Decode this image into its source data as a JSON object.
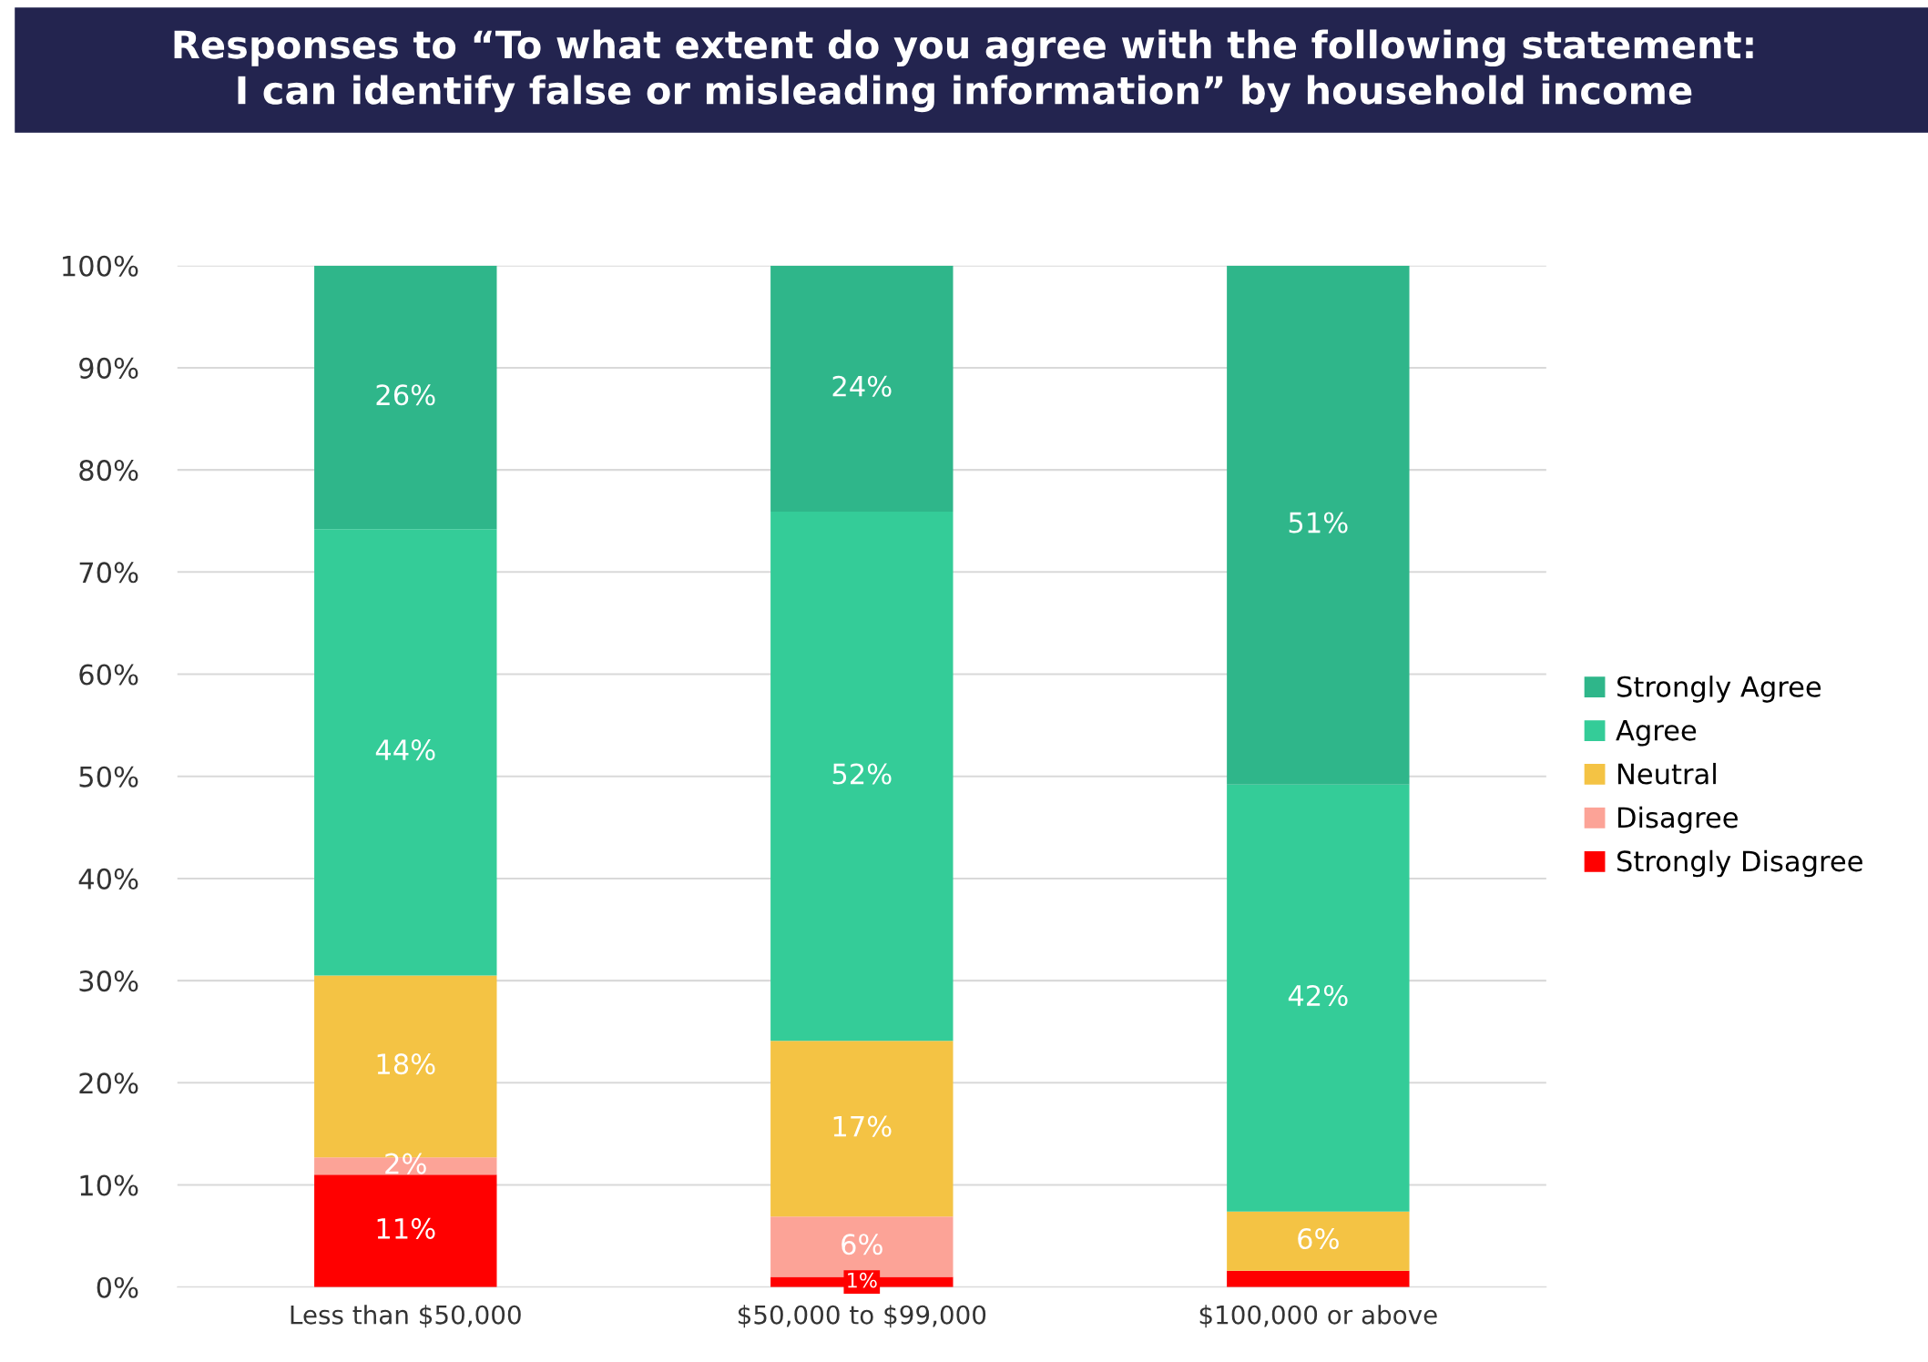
{
  "chart_data": {
    "type": "bar",
    "stacked": true,
    "title": "Responses to “To what extent do you agree with the following statement:\nI can identify false or misleading information” by household income",
    "categories": [
      "Less than $50,000",
      "$50,000 to $99,000",
      "$100,000 or above"
    ],
    "series": [
      {
        "name": "Strongly Disagree",
        "color": "#ff0000",
        "values": [
          11,
          1,
          1.6
        ],
        "value_labels": [
          "11%",
          "1%",
          null
        ]
      },
      {
        "name": "Disagree",
        "color": "#fca397",
        "values": [
          1.7,
          5.9,
          0
        ],
        "value_labels": [
          "2%",
          "6%",
          null
        ]
      },
      {
        "name": "Neutral",
        "color": "#f4c344",
        "values": [
          17.8,
          17.2,
          5.8
        ],
        "value_labels": [
          "18%",
          "17%",
          "6%"
        ]
      },
      {
        "name": "Agree",
        "color": "#34cc98",
        "values": [
          43.7,
          51.8,
          41.8
        ],
        "value_labels": [
          "44%",
          "52%",
          "42%"
        ]
      },
      {
        "name": "Strongly Agree",
        "color": "#2fb68a",
        "values": [
          25.8,
          24.1,
          50.8
        ],
        "value_labels": [
          "26%",
          "24%",
          "51%"
        ]
      }
    ],
    "ylim": [
      0,
      100
    ],
    "yticks": [
      {
        "value": 0,
        "label": "0%"
      },
      {
        "value": 10,
        "label": "10%"
      },
      {
        "value": 20,
        "label": "20%"
      },
      {
        "value": 30,
        "label": "30%"
      },
      {
        "value": 40,
        "label": "40%"
      },
      {
        "value": 50,
        "label": "50%"
      },
      {
        "value": 60,
        "label": "60%"
      },
      {
        "value": 70,
        "label": "70%"
      },
      {
        "value": 80,
        "label": "80%"
      },
      {
        "value": 90,
        "label": "90%"
      },
      {
        "value": 100,
        "label": "100%"
      }
    ],
    "grid": "y",
    "legend": "right"
  }
}
